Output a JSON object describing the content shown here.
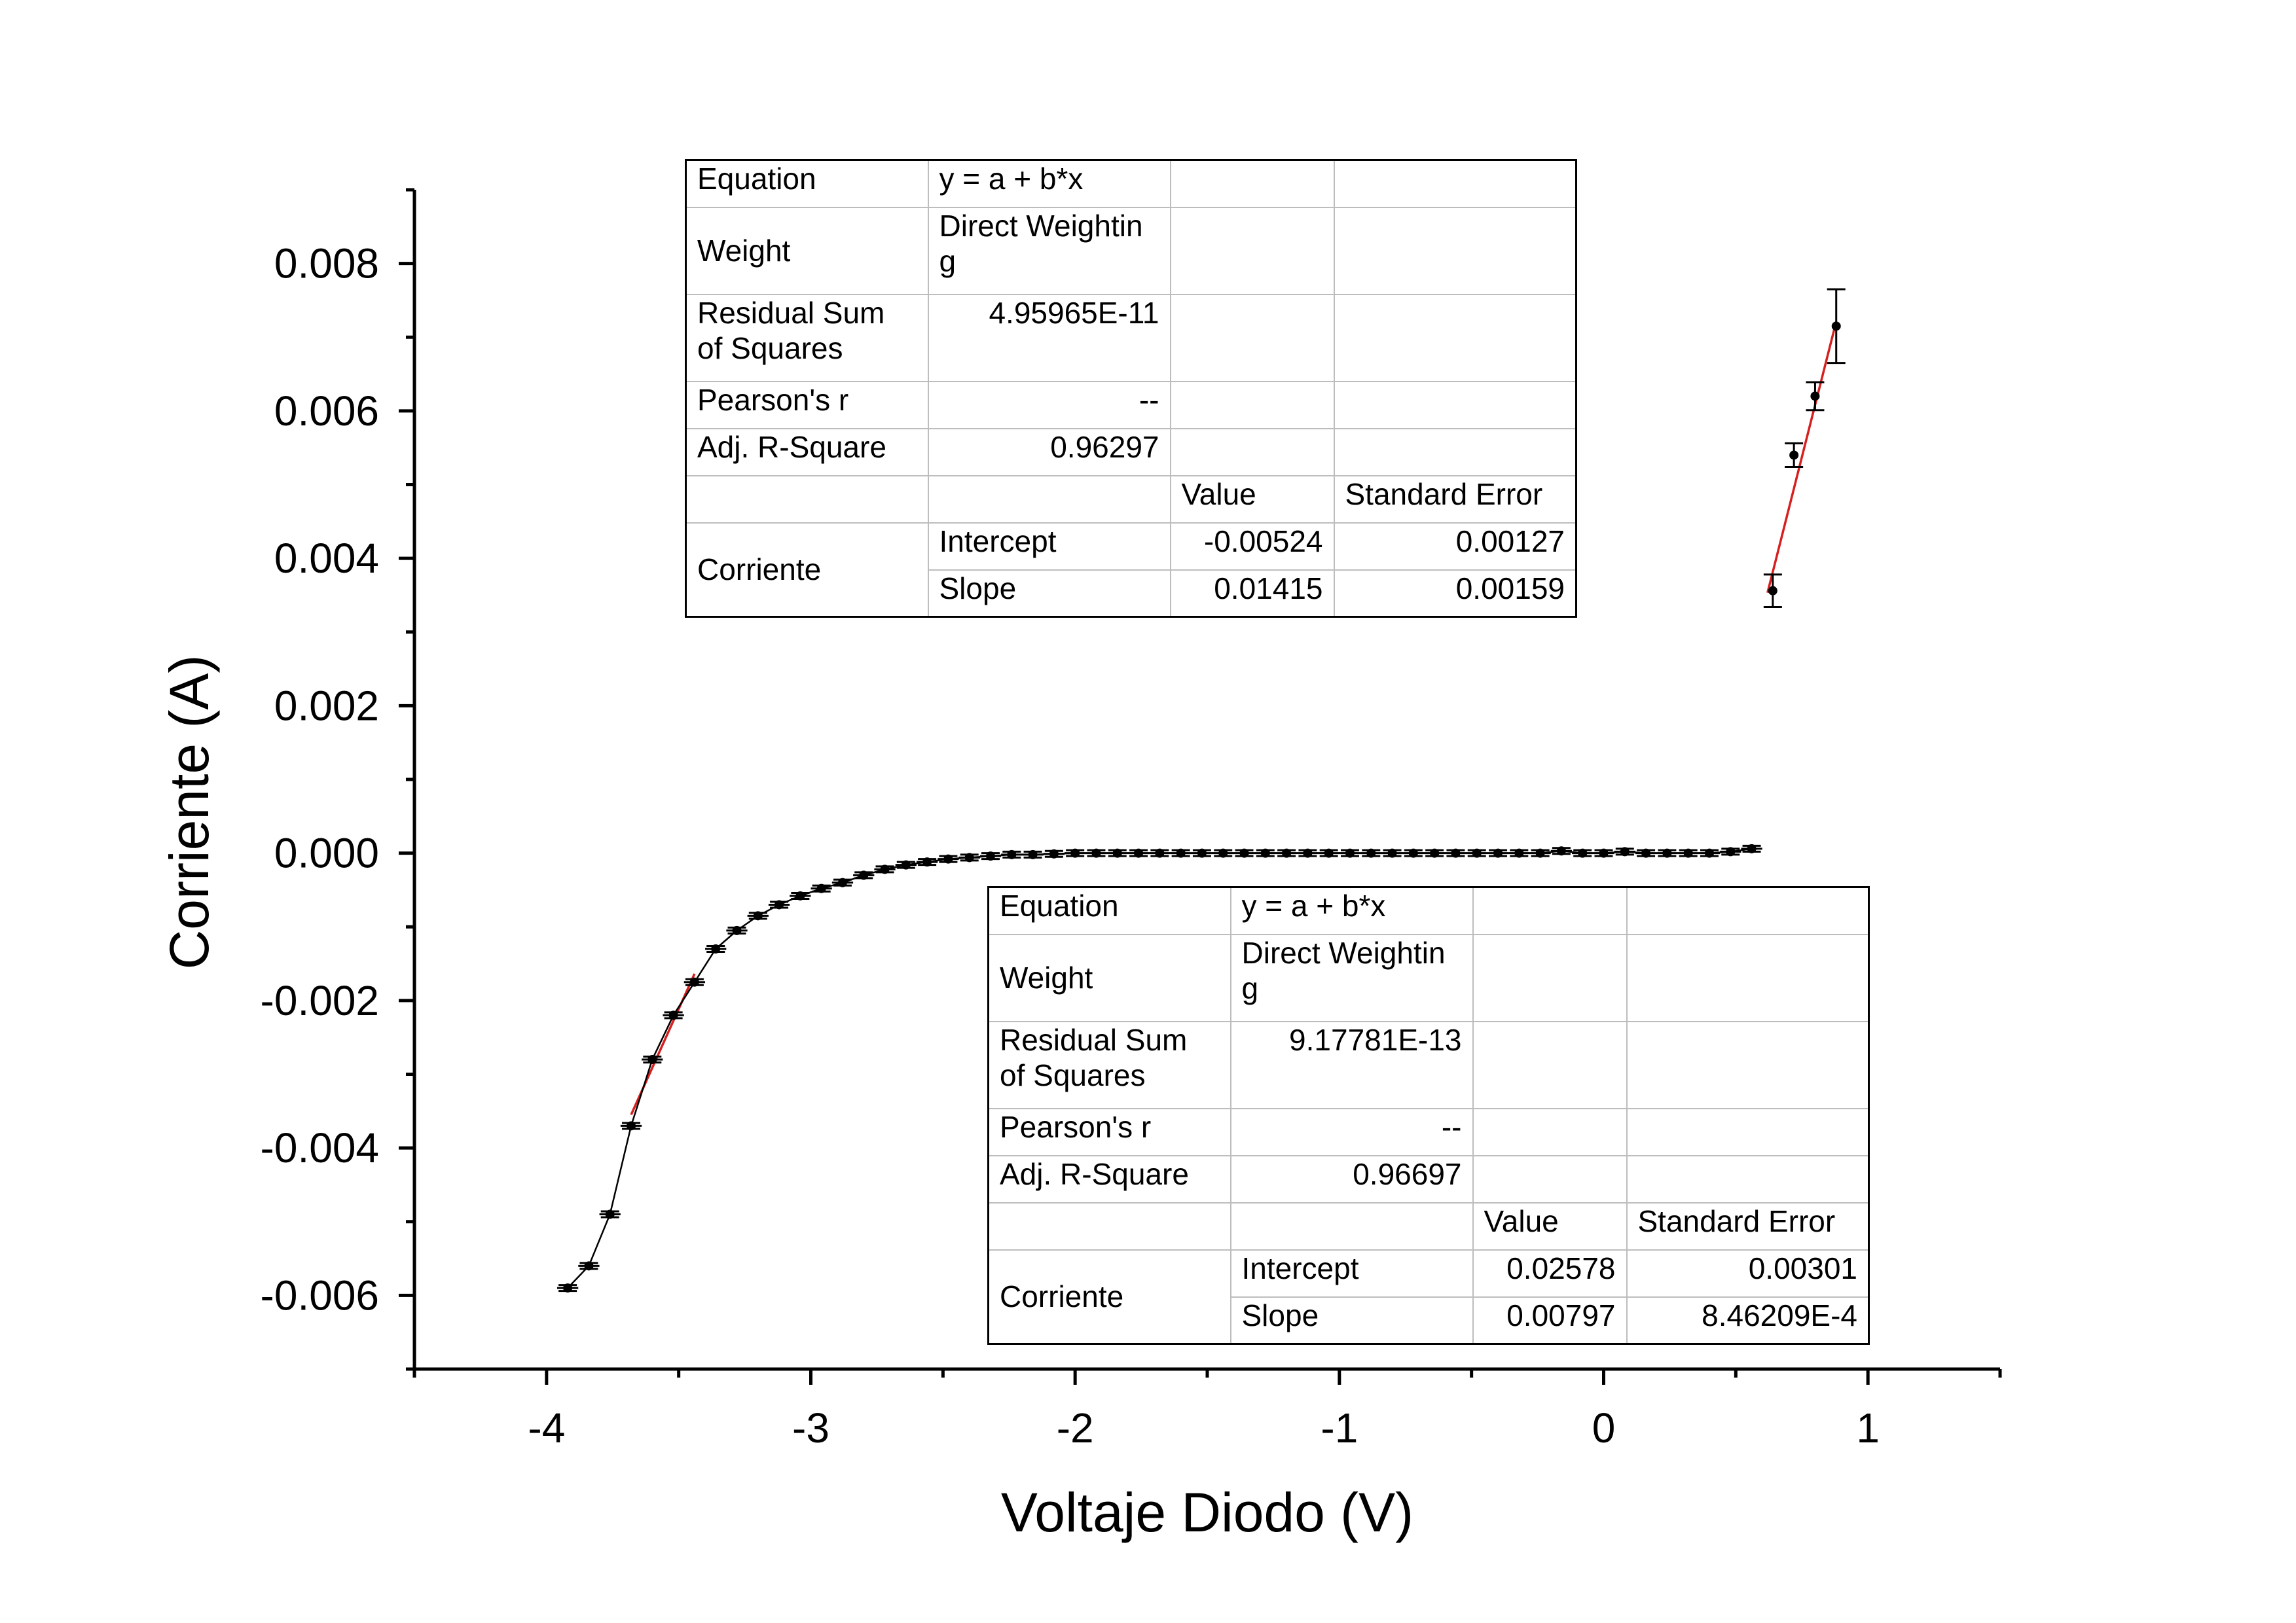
{
  "chart_data": {
    "type": "scatter",
    "xlabel": "Voltaje Diodo (V)",
    "ylabel": "Corriente (A)",
    "xlim": [
      -4.5,
      1.5
    ],
    "ylim": [
      -0.007,
      0.009
    ],
    "x_ticks": [
      -4,
      -3,
      -2,
      -1,
      0,
      1
    ],
    "x_tick_labels": [
      "-4",
      "-3",
      "-2",
      "-1",
      "0",
      "1"
    ],
    "y_ticks": [
      -0.006,
      -0.004,
      -0.002,
      0.0,
      0.002,
      0.004,
      0.006,
      0.008
    ],
    "y_tick_labels": [
      "-0.006",
      "-0.004",
      "-0.002",
      "0.000",
      "0.002",
      "0.004",
      "0.006",
      "0.008"
    ],
    "series": [
      {
        "marker": "circle",
        "color": "#000000",
        "x": [
          -3.92,
          -3.84,
          -3.76,
          -3.68,
          -3.6,
          -3.52,
          -3.44,
          -3.36,
          -3.28,
          -3.2,
          -3.12,
          -3.04,
          -2.96,
          -2.88,
          -2.8,
          -2.72,
          -2.64,
          -2.56,
          -2.48,
          -2.4,
          -2.32,
          -2.24,
          -2.16,
          -2.08,
          -2.0,
          -1.92,
          -1.84,
          -1.76,
          -1.68,
          -1.6,
          -1.52,
          -1.44,
          -1.36,
          -1.28,
          -1.2,
          -1.12,
          -1.04,
          -0.96,
          -0.88,
          -0.8,
          -0.72,
          -0.64,
          -0.56,
          -0.48,
          -0.4,
          -0.32,
          -0.24,
          -0.16,
          -0.08,
          0.0,
          0.08,
          0.16,
          0.24,
          0.32,
          0.4,
          0.48,
          0.56
        ],
        "y": [
          -0.0059,
          -0.0056,
          -0.0049,
          -0.0037,
          -0.0028,
          -0.0022,
          -0.00175,
          -0.0013,
          -0.00105,
          -0.00085,
          -0.0007,
          -0.00058,
          -0.00048,
          -0.0004,
          -0.0003,
          -0.00022,
          -0.00016,
          -0.00012,
          -8e-05,
          -6e-05,
          -4e-05,
          -2e-05,
          -2e-05,
          -1e-05,
          0.0,
          0.0,
          0.0,
          0.0,
          0.0,
          0.0,
          0.0,
          0.0,
          0.0,
          0.0,
          0.0,
          0.0,
          0.0,
          0.0,
          0.0,
          0.0,
          0.0,
          0.0,
          0.0,
          0.0,
          0.0,
          0.0,
          0.0,
          3e-05,
          0.0,
          0.0,
          2e-05,
          0.0,
          0.0,
          0.0,
          0.0,
          2e-05,
          6e-05
        ],
        "xerr": 0.04,
        "yerr": 4e-05
      },
      {
        "marker": "circle",
        "color": "#000000",
        "x": [
          0.64,
          0.72,
          0.8,
          0.88
        ],
        "y": [
          0.00356,
          0.0054,
          0.0062,
          0.00715
        ],
        "yerr": [
          0.00022,
          0.00016,
          0.00019,
          0.0005
        ]
      }
    ],
    "fits": [
      {
        "color": "#d62020",
        "x_range": [
          -3.68,
          -3.44
        ],
        "intercept": 0.02578,
        "slope": 0.00797
      },
      {
        "color": "#d62020",
        "x_range": [
          0.62,
          0.88
        ],
        "intercept": -0.00524,
        "slope": 0.01415
      }
    ]
  },
  "stats_tables": [
    {
      "equation_label": "Equation",
      "equation_value": "y = a + b*x",
      "weight_label": "Weight",
      "weight_value_1": "Direct Weightin",
      "weight_value_2": "g",
      "rss_label_1": "Residual Sum",
      "rss_label_2": "of Squares",
      "rss_value": "4.95965E-11",
      "pearson_label": "Pearson's r",
      "pearson_value": "--",
      "adjr_label": "Adj. R-Square",
      "adjr_value": "0.96297",
      "value_header": "Value",
      "stderr_header": "Standard Error",
      "group_label": "Corriente",
      "intercept_label": "Intercept",
      "intercept_value": "-0.00524",
      "intercept_err": "0.00127",
      "slope_label": "Slope",
      "slope_value": "0.01415",
      "slope_err": "0.00159"
    },
    {
      "equation_label": "Equation",
      "equation_value": "y = a + b*x",
      "weight_label": "Weight",
      "weight_value_1": "Direct Weightin",
      "weight_value_2": "g",
      "rss_label_1": "Residual Sum",
      "rss_label_2": "of Squares",
      "rss_value": "9.17781E-13",
      "pearson_label": "Pearson's r",
      "pearson_value": "--",
      "adjr_label": "Adj. R-Square",
      "adjr_value": "0.96697",
      "value_header": "Value",
      "stderr_header": "Standard Error",
      "group_label": "Corriente",
      "intercept_label": "Intercept",
      "intercept_value": "0.02578",
      "intercept_err": "0.00301",
      "slope_label": "Slope",
      "slope_value": "0.00797",
      "slope_err": "8.46209E-4"
    }
  ]
}
